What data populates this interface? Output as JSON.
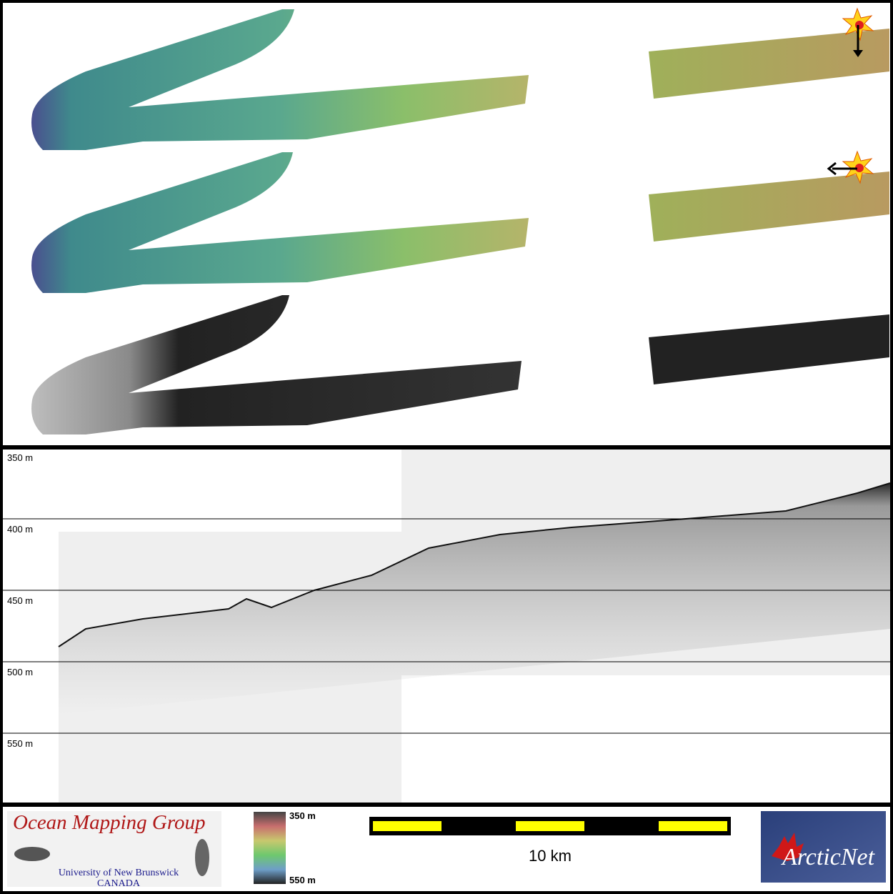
{
  "profile": {
    "depth_labels": [
      "350 m",
      "400 m",
      "450 m",
      "500 m",
      "550 m"
    ]
  },
  "footer": {
    "logo_title": "Ocean Mapping Group",
    "logo_university": "University of New Brunswick",
    "logo_country": "CANADA",
    "colorbar_top": "350 m",
    "colorbar_bottom": "550 m",
    "scale_label": "10 km",
    "partner_logo": "ArcticNet"
  }
}
